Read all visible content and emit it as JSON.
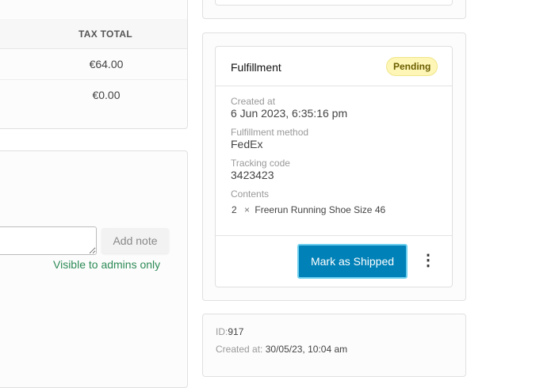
{
  "tax_table": {
    "header": "TAX TOTAL",
    "rows": [
      "€64.00",
      "€0.00"
    ]
  },
  "notes": {
    "add_note_label": "Add note",
    "visibility_text": "Visible to admins only",
    "input_value": ""
  },
  "fulfillment": {
    "title": "Fulfillment",
    "status": "Pending",
    "created_at_label": "Created at",
    "created_at": "6 Jun 2023, 6:35:16 pm",
    "method_label": "Fulfillment method",
    "method": "FedEx",
    "tracking_label": "Tracking code",
    "tracking": "3423423",
    "contents_label": "Contents",
    "contents": [
      {
        "qty": "2",
        "times": "×",
        "name": "Freerun Running Shoe Size 46"
      }
    ],
    "action_label": "Mark as Shipped",
    "more_icon": "more-vertical-icon"
  },
  "meta": {
    "id_label": "ID:",
    "id": "917",
    "created_label": "Created at:",
    "created": "30/05/23, 10:04 am"
  }
}
